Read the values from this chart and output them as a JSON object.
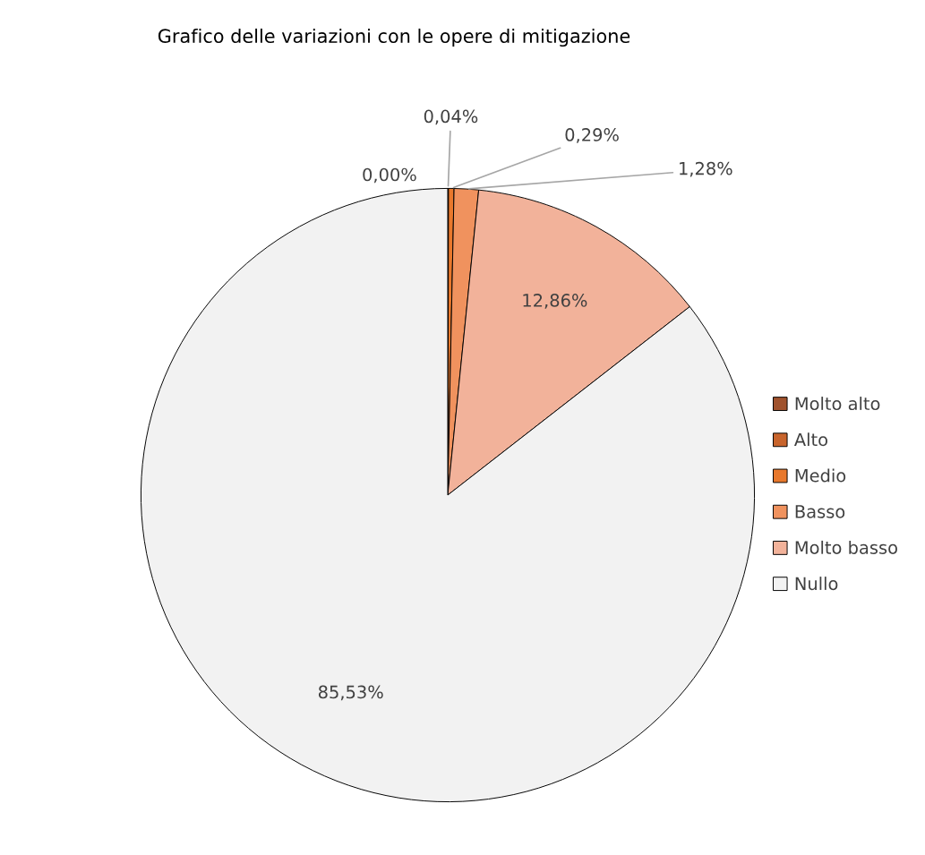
{
  "chart_data": {
    "type": "pie",
    "title": "Grafico delle variazioni con le opere di mitigazione",
    "categories": [
      "Molto alto",
      "Alto",
      "Medio",
      "Basso",
      "Molto basso",
      "Nullo"
    ],
    "values": [
      0.0,
      0.04,
      0.29,
      1.28,
      12.86,
      85.53
    ],
    "value_labels": [
      "0,00%",
      "0,04%",
      "0,29%",
      "1,28%",
      "12,86%",
      "85,53%"
    ],
    "colors": [
      "#a0522d",
      "#c8642c",
      "#e8782c",
      "#f0925e",
      "#f2b29a",
      "#f2f2f2"
    ],
    "legend": "right"
  }
}
